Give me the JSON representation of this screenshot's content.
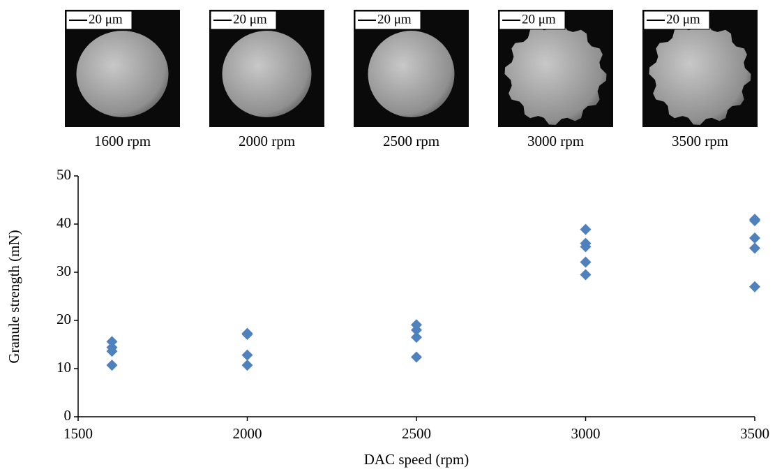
{
  "images": [
    {
      "scale_bar": "20 μm",
      "caption": "1600 rpm"
    },
    {
      "scale_bar": "20 μm",
      "caption": "2000 rpm"
    },
    {
      "scale_bar": "20 μm",
      "caption": "2500 rpm"
    },
    {
      "scale_bar": "20 μm",
      "caption": "3000 rpm"
    },
    {
      "scale_bar": "20 μm",
      "caption": "3500 rpm"
    }
  ],
  "chart_data": {
    "type": "scatter",
    "x_label": "DAC speed (rpm)",
    "y_label": "Granule strength (mN)",
    "series": [
      {
        "name": "Granule strength",
        "color": "#4f81bd",
        "x": [
          1600,
          1600,
          1600,
          1600,
          2000,
          2000,
          2000,
          2000,
          2500,
          2500,
          2500,
          2500,
          3000,
          3000,
          3000,
          3000,
          3000,
          3500,
          3500,
          3500,
          3500,
          3500
        ],
        "values": [
          15.6,
          14.4,
          13.6,
          10.7,
          17.3,
          17.1,
          12.8,
          10.7,
          19.1,
          18.0,
          16.5,
          12.4,
          38.9,
          36.0,
          35.3,
          32.1,
          29.5,
          41.0,
          40.7,
          37.1,
          35.0,
          27.0
        ]
      }
    ],
    "xlim": [
      1500,
      3500
    ],
    "xticks": [
      1500,
      2000,
      2500,
      3000,
      3500
    ],
    "ylim": [
      0,
      50
    ],
    "yticks": [
      0,
      10,
      20,
      30,
      40,
      50
    ],
    "grid": false
  }
}
